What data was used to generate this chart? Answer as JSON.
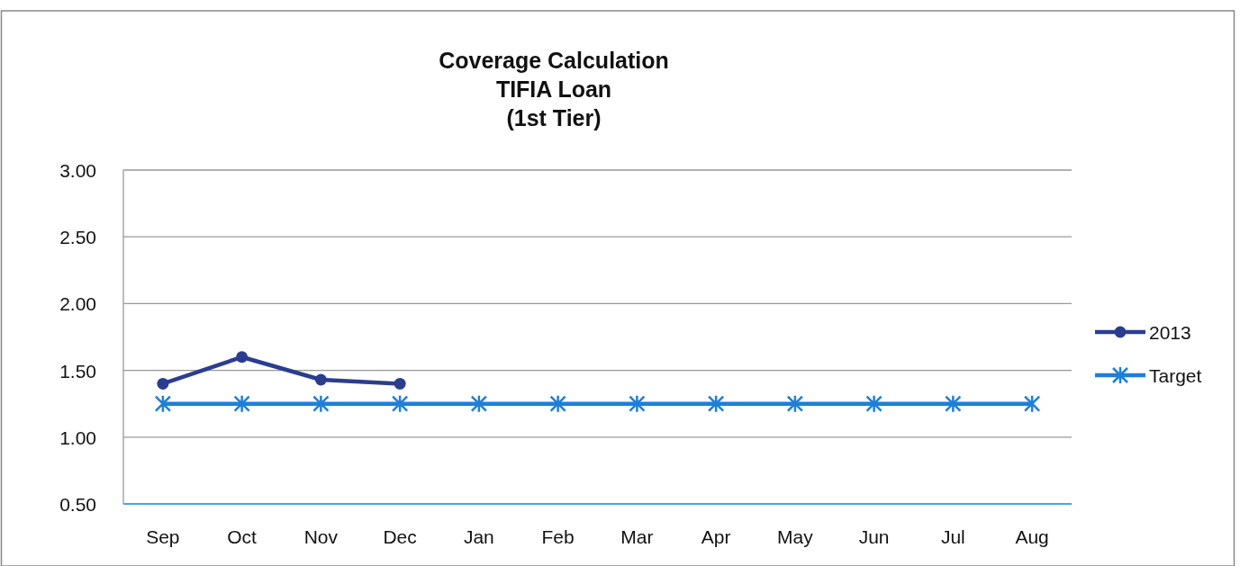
{
  "chart_data": {
    "type": "line",
    "title": "Coverage Calculation\nTIFIA Loan\n(1st Tier)",
    "categories": [
      "Sep",
      "Oct",
      "Nov",
      "Dec",
      "Jan",
      "Feb",
      "Mar",
      "Apr",
      "May",
      "Jun",
      "Jul",
      "Aug"
    ],
    "series": [
      {
        "name": "2013",
        "color": "#2b3d8f",
        "marker": "circle",
        "values": [
          1.4,
          1.6,
          1.43,
          1.4,
          null,
          null,
          null,
          null,
          null,
          null,
          null,
          null
        ]
      },
      {
        "name": "Target",
        "color": "#1e7fd8",
        "marker": "cross",
        "values": [
          1.25,
          1.25,
          1.25,
          1.25,
          1.25,
          1.25,
          1.25,
          1.25,
          1.25,
          1.25,
          1.25,
          1.25
        ]
      }
    ],
    "ylim": [
      0.5,
      3.0
    ],
    "yticks": [
      {
        "value": 0.5,
        "label": "0.50"
      },
      {
        "value": 1,
        "label": "1.00"
      },
      {
        "value": 1.5,
        "label": "1.50"
      },
      {
        "value": 2,
        "label": "2.00"
      },
      {
        "value": 2.5,
        "label": "2.50"
      },
      {
        "value": 3,
        "label": "3.00"
      }
    ],
    "grid": "y",
    "legend": "right",
    "line_style": "solid"
  }
}
